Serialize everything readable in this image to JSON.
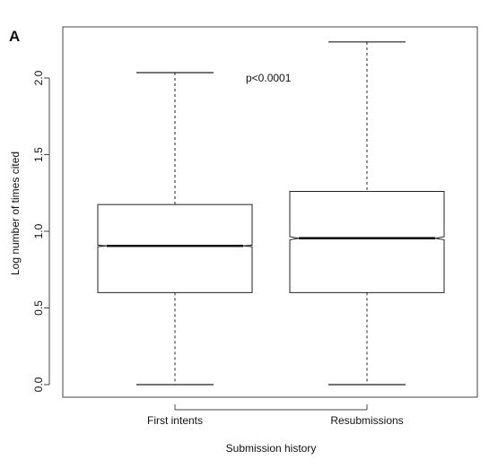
{
  "chart_data": {
    "type": "box",
    "panel_label": "A",
    "xlabel": "Submission history",
    "ylabel": "Log number of times cited",
    "ylim": [
      -0.1,
      2.35
    ],
    "yticks": [
      0.0,
      0.5,
      1.0,
      1.5,
      2.0
    ],
    "ytick_labels": [
      "0.0",
      "0.5",
      "1.0",
      "1.5",
      "2.0"
    ],
    "categories": [
      "First intents",
      "Resubmissions"
    ],
    "notched": true,
    "whisker_style": "dashed",
    "boxes": [
      {
        "category": "First intents",
        "min": 0.0,
        "q1": 0.6,
        "median": 0.905,
        "q3": 1.175,
        "max": 2.035,
        "notch_low": 0.9,
        "notch_high": 0.91
      },
      {
        "category": "Resubmissions",
        "min": 0.0,
        "q1": 0.6,
        "median": 0.955,
        "q3": 1.26,
        "max": 2.235,
        "notch_low": 0.945,
        "notch_high": 0.965
      }
    ],
    "annotation": "p<0.0001",
    "grid": false
  }
}
